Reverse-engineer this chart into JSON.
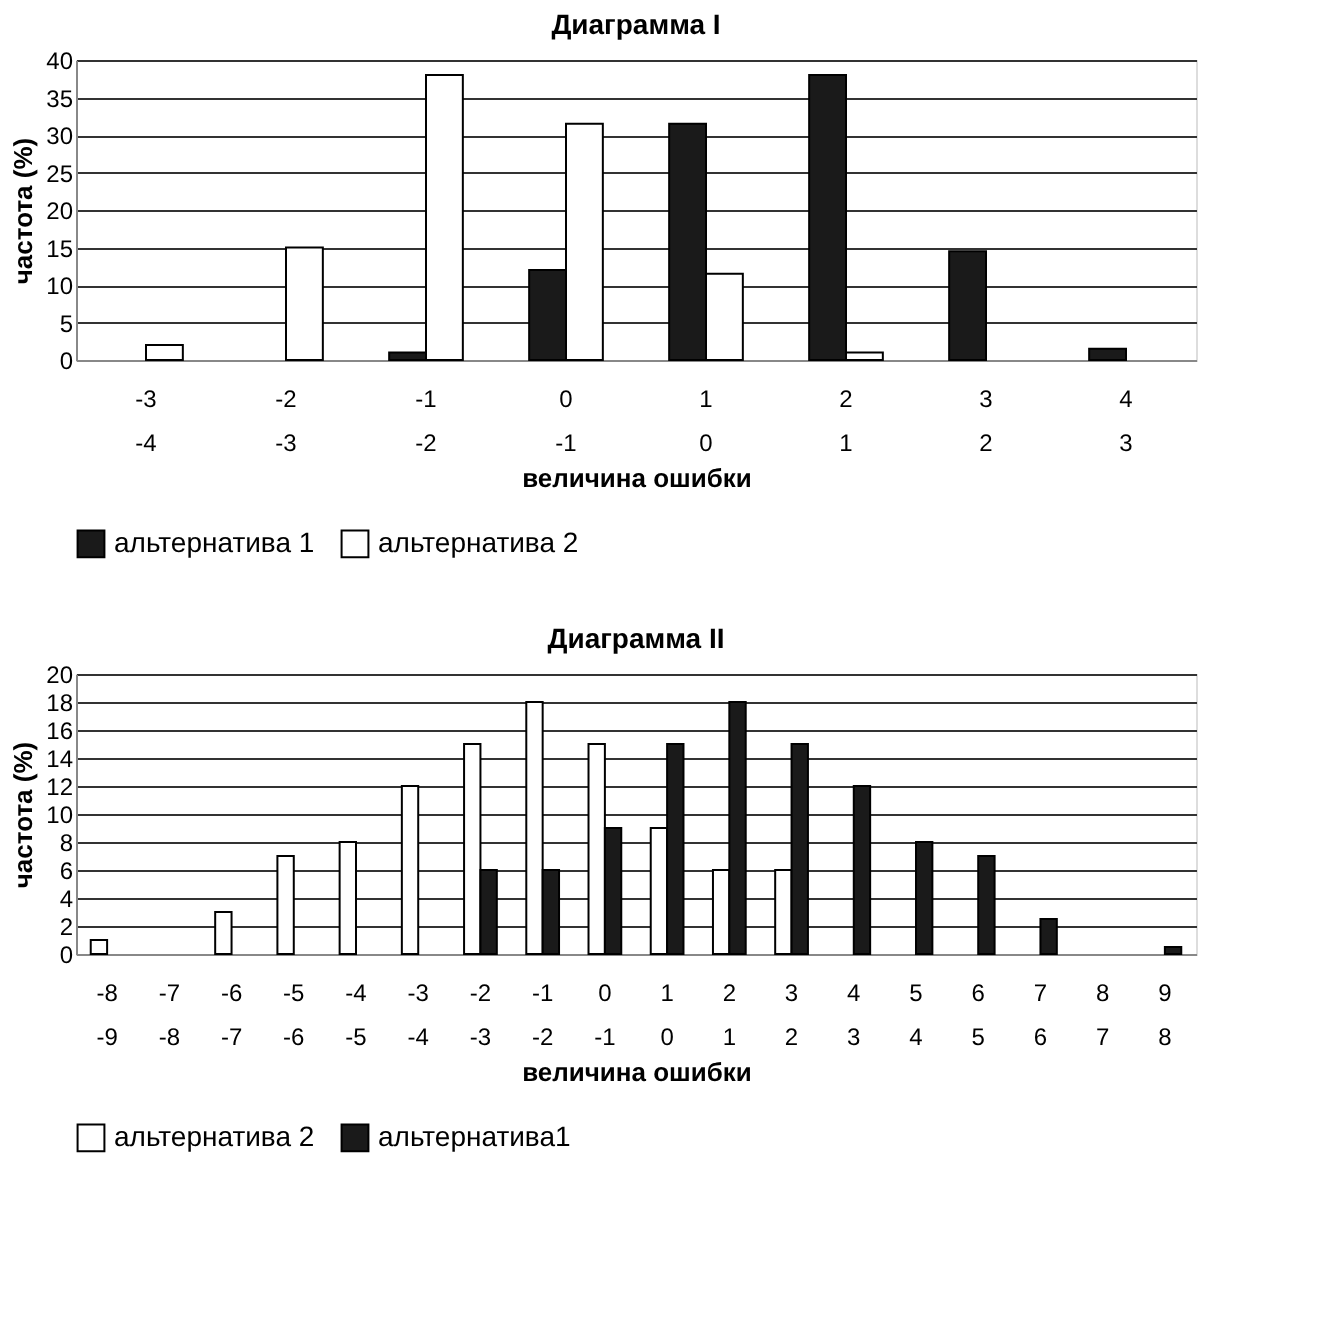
{
  "chart_data": [
    {
      "type": "bar",
      "title": "Диаграмма I",
      "xlabel": "величина ошибки",
      "ylabel": "частота (%)",
      "categories": [
        "-3\n-4",
        "-2\n-3",
        "-1\n-2",
        "0\n-1",
        "1\n0",
        "2\n1",
        "3\n2",
        "4\n3"
      ],
      "series": [
        {
          "name": "альтернатива 1",
          "color": "#1a1a1a",
          "values": [
            null,
            null,
            1,
            12,
            31.5,
            38,
            14.5,
            1.5
          ]
        },
        {
          "name": "альтернатива 2",
          "color": "#ffffff",
          "values": [
            2,
            15,
            38,
            31.5,
            11.5,
            1,
            null,
            null
          ]
        }
      ],
      "ylim": [
        0,
        40
      ],
      "yticks": [
        0,
        5,
        10,
        15,
        20,
        25,
        30,
        35,
        40
      ],
      "grid": "y",
      "legend": "bottom"
    },
    {
      "type": "bar",
      "title": "Диаграмма II",
      "xlabel": "величина ошибки",
      "ylabel": "частота (%)",
      "categories": [
        "-8\n-9",
        "-7\n-8",
        "-6\n-7",
        "-5\n-6",
        "-4\n-5",
        "-3\n-4",
        "-2\n-3",
        "-1\n-2",
        "0\n-1",
        "1\n0",
        "2\n1",
        "3\n2",
        "4\n3",
        "5\n4",
        "6\n5",
        "7\n6",
        "8\n7",
        "9\n8"
      ],
      "series": [
        {
          "name": "альтернатива 2",
          "color": "#ffffff",
          "values": [
            1,
            null,
            3,
            7,
            8,
            12,
            15,
            18,
            15,
            9,
            6,
            6,
            null,
            null,
            null,
            null,
            null,
            null
          ]
        },
        {
          "name": "альтернатива1",
          "color": "#1a1a1a",
          "values": [
            null,
            null,
            null,
            null,
            null,
            null,
            6,
            6,
            9,
            15,
            18,
            15,
            12,
            8,
            7,
            2.5,
            null,
            0.5
          ]
        }
      ],
      "ylim": [
        0,
        20
      ],
      "yticks": [
        0,
        2,
        4,
        6,
        8,
        10,
        12,
        14,
        16,
        18,
        20
      ],
      "grid": "y",
      "legend": "bottom"
    }
  ]
}
